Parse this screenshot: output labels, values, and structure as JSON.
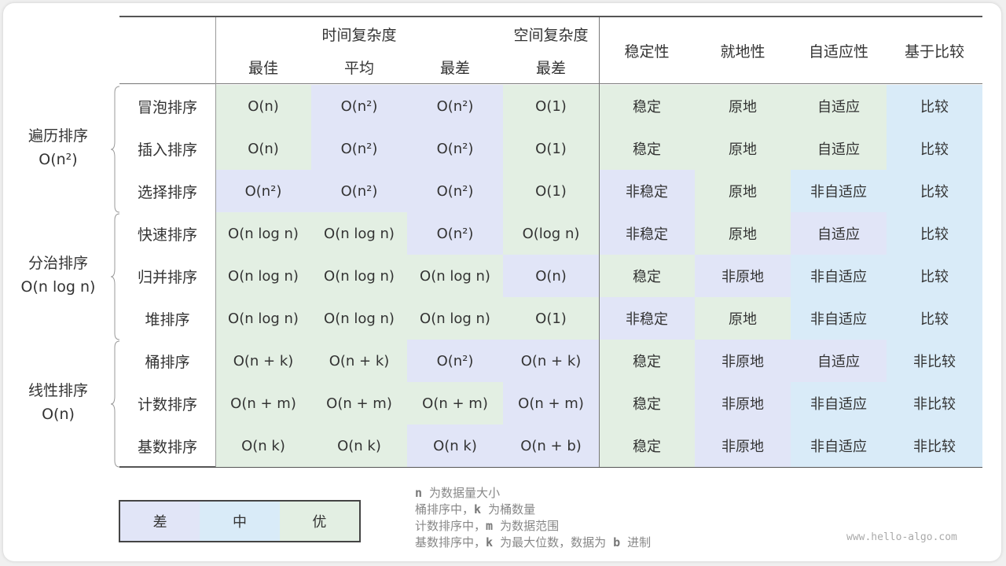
{
  "colors": {
    "worst": "#e1e5f7",
    "mid": "#d9ebf8",
    "best": "#e3efe3"
  },
  "header": {
    "time_complexity": "时间复杂度",
    "space_complexity": "空间复杂度",
    "best": "最佳",
    "average": "平均",
    "worst": "最差",
    "space_worst": "最差",
    "stability": "稳定性",
    "in_place": "就地性",
    "adaptive": "自适应性",
    "comparison": "基于比较"
  },
  "groups": [
    {
      "name": "遍历排序",
      "complexity": "O(n²)"
    },
    {
      "name": "分治排序",
      "complexity": "O(n log n)"
    },
    {
      "name": "线性排序",
      "complexity": "O(n)"
    }
  ],
  "rows": [
    {
      "name": "冒泡排序",
      "cells": [
        [
          "O(n)",
          "best"
        ],
        [
          "O(n²)",
          "worst"
        ],
        [
          "O(n²)",
          "worst"
        ],
        [
          "O(1)",
          "best"
        ],
        [
          "稳定",
          "best"
        ],
        [
          "原地",
          "best"
        ],
        [
          "自适应",
          "best"
        ],
        [
          "比较",
          "mid"
        ]
      ]
    },
    {
      "name": "插入排序",
      "cells": [
        [
          "O(n)",
          "best"
        ],
        [
          "O(n²)",
          "worst"
        ],
        [
          "O(n²)",
          "worst"
        ],
        [
          "O(1)",
          "best"
        ],
        [
          "稳定",
          "best"
        ],
        [
          "原地",
          "best"
        ],
        [
          "自适应",
          "best"
        ],
        [
          "比较",
          "mid"
        ]
      ]
    },
    {
      "name": "选择排序",
      "cells": [
        [
          "O(n²)",
          "worst"
        ],
        [
          "O(n²)",
          "worst"
        ],
        [
          "O(n²)",
          "worst"
        ],
        [
          "O(1)",
          "best"
        ],
        [
          "非稳定",
          "worst"
        ],
        [
          "原地",
          "best"
        ],
        [
          "非自适应",
          "mid"
        ],
        [
          "比较",
          "mid"
        ]
      ]
    },
    {
      "name": "快速排序",
      "cells": [
        [
          "O(n log n)",
          "best"
        ],
        [
          "O(n log n)",
          "best"
        ],
        [
          "O(n²)",
          "worst"
        ],
        [
          "O(log n)",
          "best"
        ],
        [
          "非稳定",
          "worst"
        ],
        [
          "原地",
          "best"
        ],
        [
          "自适应",
          "worst"
        ],
        [
          "比较",
          "mid"
        ]
      ]
    },
    {
      "name": "归并排序",
      "cells": [
        [
          "O(n log n)",
          "best"
        ],
        [
          "O(n log n)",
          "best"
        ],
        [
          "O(n log n)",
          "best"
        ],
        [
          "O(n)",
          "worst"
        ],
        [
          "稳定",
          "best"
        ],
        [
          "非原地",
          "worst"
        ],
        [
          "非自适应",
          "mid"
        ],
        [
          "比较",
          "mid"
        ]
      ]
    },
    {
      "name": "堆排序",
      "cells": [
        [
          "O(n log n)",
          "best"
        ],
        [
          "O(n log n)",
          "best"
        ],
        [
          "O(n log n)",
          "best"
        ],
        [
          "O(1)",
          "best"
        ],
        [
          "非稳定",
          "worst"
        ],
        [
          "原地",
          "best"
        ],
        [
          "非自适应",
          "mid"
        ],
        [
          "比较",
          "mid"
        ]
      ]
    },
    {
      "name": "桶排序",
      "cells": [
        [
          "O(n + k)",
          "best"
        ],
        [
          "O(n + k)",
          "best"
        ],
        [
          "O(n²)",
          "worst"
        ],
        [
          "O(n + k)",
          "worst"
        ],
        [
          "稳定",
          "best"
        ],
        [
          "非原地",
          "worst"
        ],
        [
          "自适应",
          "worst"
        ],
        [
          "非比较",
          "mid"
        ]
      ]
    },
    {
      "name": "计数排序",
      "cells": [
        [
          "O(n + m)",
          "best"
        ],
        [
          "O(n + m)",
          "best"
        ],
        [
          "O(n + m)",
          "best"
        ],
        [
          "O(n + m)",
          "worst"
        ],
        [
          "稳定",
          "best"
        ],
        [
          "非原地",
          "worst"
        ],
        [
          "非自适应",
          "mid"
        ],
        [
          "非比较",
          "mid"
        ]
      ]
    },
    {
      "name": "基数排序",
      "cells": [
        [
          "O(n k)",
          "best"
        ],
        [
          "O(n k)",
          "best"
        ],
        [
          "O(n k)",
          "worst"
        ],
        [
          "O(n + b)",
          "worst"
        ],
        [
          "稳定",
          "best"
        ],
        [
          "非原地",
          "worst"
        ],
        [
          "非自适应",
          "mid"
        ],
        [
          "非比较",
          "mid"
        ]
      ]
    }
  ],
  "legend": {
    "worst": "差",
    "mid": "中",
    "best": "优"
  },
  "notes": [
    {
      "var": "n",
      "pre": "",
      "post": " 为数据量大小"
    },
    {
      "var": "k",
      "pre": "桶排序中，",
      "post": " 为桶数量"
    },
    {
      "var": "m",
      "pre": "计数排序中，",
      "post": " 为数据范围"
    },
    {
      "var": "k",
      "pre": "基数排序中，",
      "post": " 为最大位数，数据为 ",
      "var2": "b",
      "post2": " 进制"
    }
  ],
  "watermark": "www.hello-algo.com"
}
